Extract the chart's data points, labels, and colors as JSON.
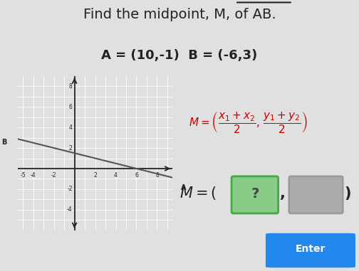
{
  "bg_color": "#e0e0e0",
  "title_text": "Find the midpoint, M, of AB.",
  "subtitle_text": "A = (10,-1)  B = (-6,3)",
  "point_A": [
    10,
    -1
  ],
  "point_B": [
    -6,
    3
  ],
  "formula_color": "#cc0000",
  "line_color": "#555555",
  "dot_color": "#1a3dcc",
  "grid_color": "#b0b0b0",
  "grid_bg": "#c8c8c8",
  "enter_btn_color": "#2288ee",
  "green_box_face": "#88cc88",
  "green_box_edge": "#44aa44",
  "gray_box_face": "#aaaaaa",
  "gray_box_edge": "#999999"
}
